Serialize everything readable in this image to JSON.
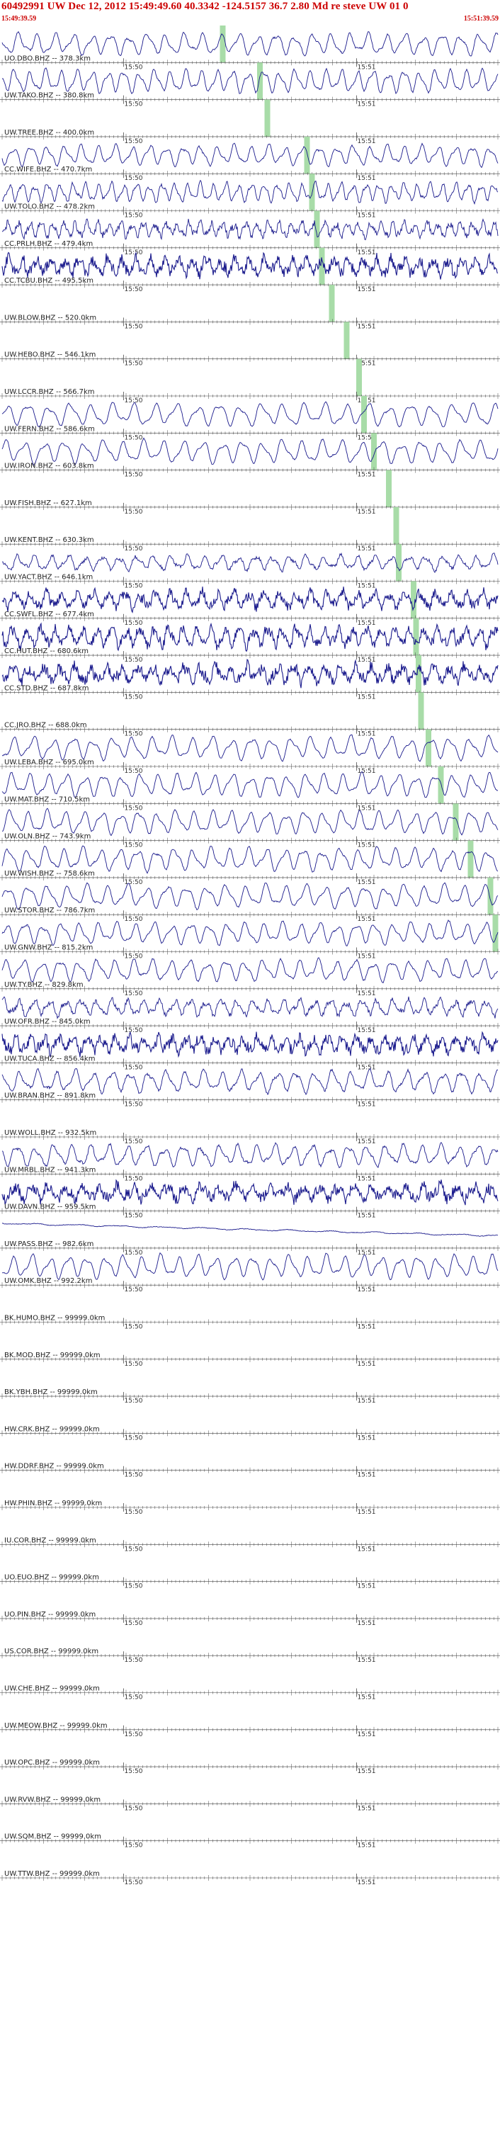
{
  "header": {
    "title": "60492991 UW Dec 12, 2012 15:49:49.60    40.3342  -124.5157 36.7 2.80 Md re steve UW 01    0",
    "start_time": "15:49:39.59",
    "end_time": "15:51:39.59"
  },
  "colors": {
    "header_text": "#cc0000",
    "trace": "#1a1a8c",
    "pick": "#a8dca8",
    "text": "#222222"
  },
  "chart_data": {
    "type": "line",
    "title": "60492991 UW Dec 12, 2012 15:49:49.60    40.3342  -124.5157 36.7 2.80 Md re steve UW 01    0",
    "time_range": [
      "15:49:39.59",
      "15:51:39.59"
    ],
    "minute_marks": [
      "15:50",
      "15:51"
    ],
    "traces": [
      {
        "label": "UO.DBO.BHZ -- 378.3km",
        "amp": 0.8,
        "period": 26,
        "noise": 0.05,
        "pick": 0.445
      },
      {
        "label": "UW.TAKO.BHZ -- 380.8km",
        "amp": 0.85,
        "period": 22,
        "noise": 0.05,
        "pick": 0.52
      },
      {
        "label": "UW.TREE.BHZ -- 400.0km",
        "amp": 0.0,
        "period": 30,
        "noise": 0.0,
        "pick": 0.535
      },
      {
        "label": "CC.WIFE.BHZ -- 470.7km",
        "amp": 0.75,
        "period": 24,
        "noise": 0.05,
        "pick": 0.615
      },
      {
        "label": "UW.TOLO.BHZ -- 478.2km",
        "amp": 0.7,
        "period": 18,
        "noise": 0.08,
        "pick": 0.625
      },
      {
        "label": "CC.PRLH.BHZ -- 479.4km",
        "amp": 0.55,
        "period": 16,
        "noise": 0.2,
        "pick": 0.635
      },
      {
        "label": "CC.TCBU.BHZ -- 495.5km",
        "amp": 0.6,
        "period": 20,
        "noise": 0.35,
        "pick": 0.645
      },
      {
        "label": "UW.BLOW.BHZ -- 520.0km",
        "amp": 0.0,
        "period": 30,
        "noise": 0.0,
        "pick": 0.665
      },
      {
        "label": "UW.HEBO.BHZ -- 546.1km",
        "amp": 0.0,
        "period": 30,
        "noise": 0.0,
        "pick": 0.695
      },
      {
        "label": "UW.LCCR.BHZ -- 566.7km",
        "amp": 0.0,
        "period": 30,
        "noise": 0.0,
        "pick": 0.72
      },
      {
        "label": "UW.FERN.BHZ -- 586.6km",
        "amp": 0.85,
        "period": 30,
        "noise": 0.04,
        "pick": 0.73
      },
      {
        "label": "UW.IRON.BHZ -- 603.8km",
        "amp": 0.85,
        "period": 28,
        "noise": 0.04,
        "pick": 0.75
      },
      {
        "label": "UW.FISH.BHZ -- 627.1km",
        "amp": 0.0,
        "period": 30,
        "noise": 0.0,
        "pick": 0.78
      },
      {
        "label": "UW.KENT.BHZ -- 630.3km",
        "amp": 0.0,
        "period": 30,
        "noise": 0.0,
        "pick": 0.795
      },
      {
        "label": "UW.YACT.BHZ -- 646.1km",
        "amp": 0.55,
        "period": 24,
        "noise": 0.1,
        "pick": 0.8
      },
      {
        "label": "CC.SWFL.BHZ -- 677.4km",
        "amp": 0.6,
        "period": 22,
        "noise": 0.3,
        "pick": 0.83
      },
      {
        "label": "CC.HUT.BHZ -- 680.6km",
        "amp": 0.7,
        "period": 20,
        "noise": 0.3,
        "pick": 0.835
      },
      {
        "label": "CC.STD.BHZ -- 687.8km",
        "amp": 0.6,
        "period": 22,
        "noise": 0.35,
        "pick": 0.84
      },
      {
        "label": "CC.JRO.BHZ -- 688.0km",
        "amp": 0.0,
        "period": 30,
        "noise": 0.0,
        "pick": 0.845
      },
      {
        "label": "UW.LEBA.BHZ -- 695.0km",
        "amp": 0.85,
        "period": 28,
        "noise": 0.04,
        "pick": 0.86
      },
      {
        "label": "UW.MAT.BHZ -- 710.5km",
        "amp": 0.85,
        "period": 26,
        "noise": 0.04,
        "pick": 0.885
      },
      {
        "label": "UW.OLN.BHZ -- 743.9km",
        "amp": 0.85,
        "period": 26,
        "noise": 0.04,
        "pick": 0.915
      },
      {
        "label": "UW.WISH.BHZ -- 758.6km",
        "amp": 0.85,
        "period": 26,
        "noise": 0.05,
        "pick": 0.945
      },
      {
        "label": "UW.STOR.BHZ -- 786.7km",
        "amp": 0.85,
        "period": 28,
        "noise": 0.04,
        "pick": 0.985
      },
      {
        "label": "UW.GNW.BHZ -- 815.2km",
        "amp": 0.8,
        "period": 26,
        "noise": 0.05,
        "pick": 0.995
      },
      {
        "label": "UW.TY.BHZ -- 829.8km",
        "amp": 0.8,
        "period": 26,
        "noise": 0.05,
        "pick": null
      },
      {
        "label": "UW.OFR.BHZ -- 845.0km",
        "amp": 0.6,
        "period": 22,
        "noise": 0.15,
        "pick": null
      },
      {
        "label": "UW.TUCA.BHZ -- 856.4km",
        "amp": 0.55,
        "period": 20,
        "noise": 0.35,
        "pick": null
      },
      {
        "label": "UW.BRAN.BHZ -- 891.8km",
        "amp": 0.8,
        "period": 26,
        "noise": 0.08,
        "pick": null
      },
      {
        "label": "UW.WOLL.BHZ -- 932.5km",
        "amp": 0.0,
        "period": 30,
        "noise": 0.0,
        "pick": null
      },
      {
        "label": "UW.MRBL.BHZ -- 941.3km",
        "amp": 0.8,
        "period": 26,
        "noise": 0.08,
        "pick": null
      },
      {
        "label": "UW.DAVN.BHZ -- 959.5km",
        "amp": 0.55,
        "period": 24,
        "noise": 0.35,
        "pick": null
      },
      {
        "label": "UW.PASS.BHZ -- 982.6km",
        "amp": 0.06,
        "period": 60,
        "noise": 0.02,
        "drift": 0.8,
        "pick": null
      },
      {
        "label": "UW.OMK.BHZ -- 992.2km",
        "amp": 0.85,
        "period": 26,
        "noise": 0.04,
        "pick": null
      },
      {
        "label": "BK.HUMO.BHZ -- 99999.0km",
        "amp": 0.0,
        "period": 30,
        "noise": 0.0,
        "pick": null
      },
      {
        "label": "BK.MOD.BHZ -- 99999.0km",
        "amp": 0.0,
        "period": 30,
        "noise": 0.0,
        "pick": null
      },
      {
        "label": "BK.YBH.BHZ -- 99999.0km",
        "amp": 0.0,
        "period": 30,
        "noise": 0.0,
        "pick": null
      },
      {
        "label": "HW.CRK.BHZ -- 99999.0km",
        "amp": 0.0,
        "period": 30,
        "noise": 0.0,
        "pick": null
      },
      {
        "label": "HW.DDRF.BHZ -- 99999.0km",
        "amp": 0.0,
        "period": 30,
        "noise": 0.0,
        "pick": null
      },
      {
        "label": "HW.PHIN.BHZ -- 99999.0km",
        "amp": 0.0,
        "period": 30,
        "noise": 0.0,
        "pick": null
      },
      {
        "label": "IU.COR.BHZ -- 99999.0km",
        "amp": 0.0,
        "period": 30,
        "noise": 0.0,
        "pick": null
      },
      {
        "label": "UO.EUO.BHZ -- 99999.0km",
        "amp": 0.0,
        "period": 30,
        "noise": 0.0,
        "pick": null
      },
      {
        "label": "UO.PIN.BHZ -- 99999.0km",
        "amp": 0.0,
        "period": 30,
        "noise": 0.0,
        "pick": null
      },
      {
        "label": "US.COR.BHZ -- 99999.0km",
        "amp": 0.0,
        "period": 30,
        "noise": 0.0,
        "pick": null
      },
      {
        "label": "UW.CHE.BHZ -- 99999.0km",
        "amp": 0.0,
        "period": 30,
        "noise": 0.0,
        "pick": null
      },
      {
        "label": "UW.MEOW.BHZ -- 99999.0km",
        "amp": 0.0,
        "period": 30,
        "noise": 0.0,
        "pick": null
      },
      {
        "label": "UW.OPC.BHZ -- 99999.0km",
        "amp": 0.0,
        "period": 30,
        "noise": 0.0,
        "pick": null
      },
      {
        "label": "UW.RVW.BHZ -- 99999.0km",
        "amp": 0.0,
        "period": 30,
        "noise": 0.0,
        "pick": null
      },
      {
        "label": "UW.SQM.BHZ -- 99999.0km",
        "amp": 0.0,
        "period": 30,
        "noise": 0.0,
        "pick": null
      },
      {
        "label": "UW.TTW.BHZ -- 99999.0km",
        "amp": 0.0,
        "period": 30,
        "noise": 0.0,
        "pick": null
      }
    ]
  }
}
